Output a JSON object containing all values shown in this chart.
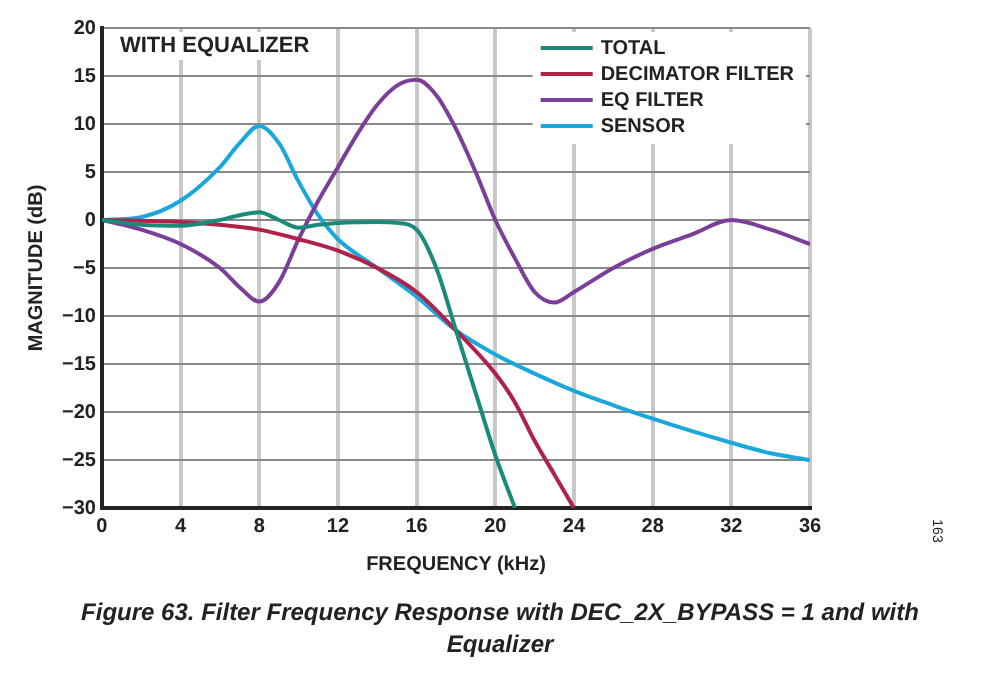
{
  "chart_data": {
    "type": "line",
    "title": "WITH EQUALIZER",
    "xlabel": "FREQUENCY (kHz)",
    "ylabel": "MAGNITUDE (dB)",
    "annotations": [
      "Figure 63. Filter Frequency Response with DEC_2X_BYPASS = 1 and with Equalizer",
      "163"
    ],
    "xlim": [
      0,
      36
    ],
    "xticks": [
      0,
      4,
      8,
      12,
      16,
      20,
      24,
      28,
      32,
      36
    ],
    "ylim": [
      -30,
      20
    ],
    "yticks": [
      -30,
      -25,
      -20,
      -15,
      -10,
      -5,
      0,
      5,
      10,
      15,
      20
    ],
    "grid": true,
    "legend": "top right",
    "marker": "none",
    "line_style": "solid",
    "series": [
      {
        "name": "TOTAL",
        "color": "#1a8a7a",
        "x": [
          0,
          2,
          4,
          6,
          7,
          8,
          9,
          10,
          11,
          12,
          14,
          15,
          16,
          17,
          18,
          19,
          20,
          21
        ],
        "values": [
          0,
          -0.5,
          -0.6,
          0,
          0.5,
          0.8,
          0,
          -0.8,
          -0.5,
          -0.3,
          -0.2,
          -0.3,
          -1,
          -5,
          -11.5,
          -18,
          -24.5,
          -30
        ]
      },
      {
        "name": "DECIMATOR FILTER",
        "color": "#b0224a",
        "x": [
          0,
          4,
          6,
          8,
          10,
          12,
          14,
          16,
          18,
          20,
          21,
          22,
          23,
          24
        ],
        "values": [
          0,
          -0.2,
          -0.5,
          -1,
          -2,
          -3.2,
          -5,
          -7.5,
          -11.5,
          -16,
          -19,
          -23,
          -26.5,
          -30
        ]
      },
      {
        "name": "EQ FILTER",
        "color": "#7b3f9a",
        "x": [
          0,
          2,
          4,
          6,
          7,
          8,
          9,
          10,
          11,
          12,
          13,
          14,
          15,
          16,
          17,
          18,
          19,
          20,
          21,
          22,
          23,
          24,
          26,
          28,
          30,
          32,
          34,
          36
        ],
        "values": [
          0,
          -1,
          -2.5,
          -5,
          -7,
          -8.5,
          -6.5,
          -2,
          2,
          5.5,
          9,
          12,
          14,
          14.6,
          13,
          9.5,
          5,
          0,
          -4,
          -7.5,
          -8.6,
          -7.5,
          -5,
          -3,
          -1.5,
          0,
          -1,
          -2.5
        ]
      },
      {
        "name": "SENSOR",
        "color": "#1aa7dc",
        "x": [
          0,
          2,
          4,
          6,
          7,
          8,
          9,
          10,
          11,
          12,
          14,
          16,
          18,
          20,
          22,
          24,
          26,
          28,
          30,
          32,
          34,
          36
        ],
        "values": [
          0,
          0.3,
          2,
          5.5,
          8,
          9.8,
          8,
          4,
          0.5,
          -2,
          -5,
          -8,
          -11.5,
          -14,
          -16,
          -17.8,
          -19.3,
          -20.7,
          -22,
          -23.2,
          -24.3,
          -25
        ]
      }
    ]
  }
}
